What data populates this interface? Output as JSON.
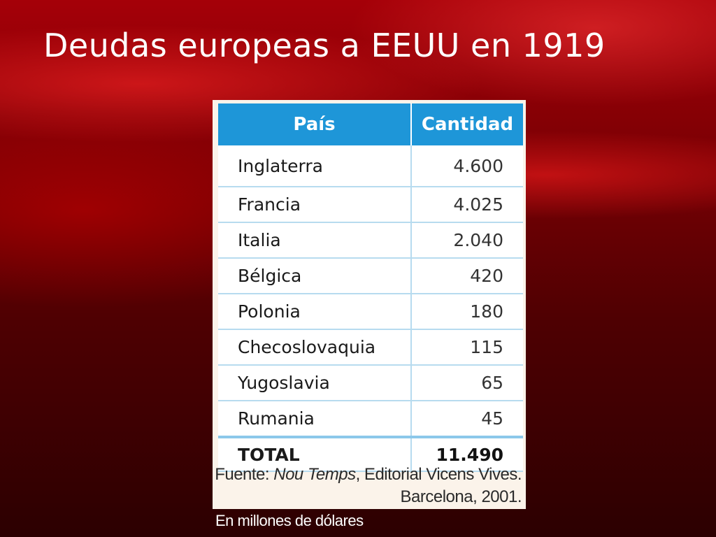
{
  "slide": {
    "title": "Deudas europeas a EEUU en 1919",
    "units_note": "En millones de dólares"
  },
  "table": {
    "headers": {
      "country": "País",
      "amount": "Cantidad"
    },
    "rows": [
      {
        "country": "Inglaterra",
        "amount": "4.600"
      },
      {
        "country": "Francia",
        "amount": "4.025"
      },
      {
        "country": "Italia",
        "amount": "2.040"
      },
      {
        "country": "Bélgica",
        "amount": "420"
      },
      {
        "country": "Polonia",
        "amount": "180"
      },
      {
        "country": "Checoslovaquia",
        "amount": "115"
      },
      {
        "country": "Yugoslavia",
        "amount": "65"
      },
      {
        "country": "Rumania",
        "amount": "45"
      }
    ],
    "total": {
      "label": "TOTAL",
      "amount": "11.490"
    }
  },
  "source": {
    "label": "Fuente:",
    "book": "Nou Temps",
    "publisher": ", Editorial Vicens Vives.",
    "place_year": "Barcelona, 2001."
  },
  "colors": {
    "header_blue": "#1e96d8",
    "grid_blue": "#b7dbef",
    "background_red": "#7a0004"
  }
}
